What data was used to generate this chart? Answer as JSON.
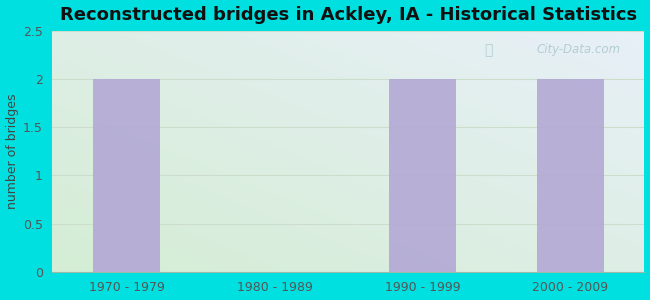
{
  "title": "Reconstructed bridges in Ackley, IA - Historical Statistics",
  "categories": [
    "1970 - 1979",
    "1980 - 1989",
    "1990 - 1999",
    "2000 - 2009"
  ],
  "values": [
    2,
    0,
    2,
    2
  ],
  "bar_color": "#b3a8d4",
  "ylabel": "number of bridges",
  "ylim": [
    0,
    2.5
  ],
  "yticks": [
    0,
    0.5,
    1,
    1.5,
    2,
    2.5
  ],
  "background_outer": "#00e0e0",
  "bg_color_bottom_left": "#d4edd4",
  "bg_color_top_right": "#e8f0f8",
  "title_fontsize": 13,
  "ylabel_fontsize": 9,
  "tick_fontsize": 9,
  "tick_color": "#555555",
  "title_color": "#111111",
  "ylabel_color": "#444444",
  "watermark": "City-Data.com",
  "watermark_color": "#aac8cc",
  "grid_color": "#ccddcc"
}
